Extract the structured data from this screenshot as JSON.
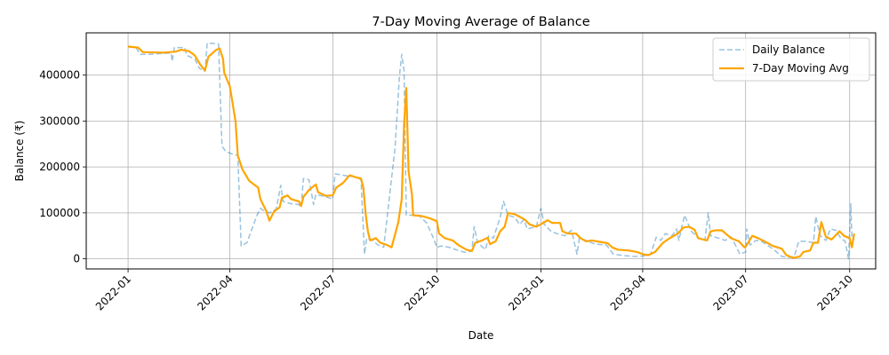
{
  "chart_data": {
    "type": "line",
    "title": "7-Day Moving Average of Balance",
    "xlabel": "Date",
    "ylabel": "Balance (₹)",
    "x_range": [
      "2021-11-25",
      "2023-10-24"
    ],
    "ylim": [
      -22000,
      492000
    ],
    "x_ticks": [
      {
        "date": "2022-01-01",
        "label": "2022-01"
      },
      {
        "date": "2022-04-01",
        "label": "2022-04"
      },
      {
        "date": "2022-07-01",
        "label": "2022-07"
      },
      {
        "date": "2022-10-01",
        "label": "2022-10"
      },
      {
        "date": "2023-01-01",
        "label": "2023-01"
      },
      {
        "date": "2023-04-01",
        "label": "2023-04"
      },
      {
        "date": "2023-07-01",
        "label": "2023-07"
      },
      {
        "date": "2023-10-01",
        "label": "2023-10"
      }
    ],
    "y_ticks": [
      0,
      100000,
      200000,
      300000,
      400000
    ],
    "y_tick_labels": [
      "0",
      "100000",
      "200000",
      "300000",
      "400000"
    ],
    "grid": true,
    "legend_position": "top-right",
    "series": [
      {
        "name": "Daily Balance",
        "color": "#1f77b4",
        "style": "dashed",
        "points": [
          [
            "2022-01-01",
            463000
          ],
          [
            "2022-01-08",
            460000
          ],
          [
            "2022-01-12",
            445000
          ],
          [
            "2022-01-20",
            445000
          ],
          [
            "2022-01-30",
            447000
          ],
          [
            "2022-02-08",
            448000
          ],
          [
            "2022-02-09",
            430000
          ],
          [
            "2022-02-11",
            460000
          ],
          [
            "2022-02-20",
            460000
          ],
          [
            "2022-02-22",
            443000
          ],
          [
            "2022-03-01",
            435000
          ],
          [
            "2022-03-05",
            415000
          ],
          [
            "2022-03-10",
            408000
          ],
          [
            "2022-03-12",
            470000
          ],
          [
            "2022-03-22",
            468000
          ],
          [
            "2022-03-25",
            245000
          ],
          [
            "2022-03-28",
            235000
          ],
          [
            "2022-04-01",
            230000
          ],
          [
            "2022-04-08",
            225000
          ],
          [
            "2022-04-11",
            28000
          ],
          [
            "2022-04-16",
            35000
          ],
          [
            "2022-04-25",
            95000
          ],
          [
            "2022-04-28",
            110000
          ],
          [
            "2022-05-01",
            105000
          ],
          [
            "2022-05-06",
            100000
          ],
          [
            "2022-05-12",
            108000
          ],
          [
            "2022-05-16",
            160000
          ],
          [
            "2022-05-18",
            125000
          ],
          [
            "2022-05-25",
            120000
          ],
          [
            "2022-06-01",
            118000
          ],
          [
            "2022-06-03",
            112000
          ],
          [
            "2022-06-05",
            175000
          ],
          [
            "2022-06-10",
            172000
          ],
          [
            "2022-06-14",
            118000
          ],
          [
            "2022-06-16",
            140000
          ],
          [
            "2022-06-25",
            135000
          ],
          [
            "2022-07-01",
            130000
          ],
          [
            "2022-07-03",
            185000
          ],
          [
            "2022-07-10",
            182000
          ],
          [
            "2022-07-15",
            180000
          ],
          [
            "2022-07-22",
            178000
          ],
          [
            "2022-07-26",
            172000
          ],
          [
            "2022-07-29",
            10000
          ],
          [
            "2022-07-31",
            45000
          ],
          [
            "2022-08-05",
            40000
          ],
          [
            "2022-08-10",
            30000
          ],
          [
            "2022-08-15",
            25000
          ],
          [
            "2022-08-25",
            240000
          ],
          [
            "2022-08-29",
            400000
          ],
          [
            "2022-08-31",
            445000
          ],
          [
            "2022-09-02",
            410000
          ],
          [
            "2022-09-04",
            95000
          ],
          [
            "2022-09-15",
            95000
          ],
          [
            "2022-09-22",
            78000
          ],
          [
            "2022-09-28",
            45000
          ],
          [
            "2022-10-01",
            25000
          ],
          [
            "2022-10-05",
            28000
          ],
          [
            "2022-10-12",
            25000
          ],
          [
            "2022-10-20",
            18000
          ],
          [
            "2022-10-26",
            14000
          ],
          [
            "2022-11-01",
            17000
          ],
          [
            "2022-11-03",
            70000
          ],
          [
            "2022-11-06",
            35000
          ],
          [
            "2022-11-13",
            20000
          ],
          [
            "2022-11-16",
            50000
          ],
          [
            "2022-11-20",
            45000
          ],
          [
            "2022-11-26",
            90000
          ],
          [
            "2022-11-29",
            125000
          ],
          [
            "2022-12-03",
            95000
          ],
          [
            "2022-12-09",
            90000
          ],
          [
            "2022-12-13",
            75000
          ],
          [
            "2022-12-17",
            85000
          ],
          [
            "2022-12-20",
            65000
          ],
          [
            "2022-12-28",
            70000
          ],
          [
            "2023-01-01",
            110000
          ],
          [
            "2023-01-04",
            75000
          ],
          [
            "2023-01-10",
            60000
          ],
          [
            "2023-01-15",
            55000
          ],
          [
            "2023-01-22",
            50000
          ],
          [
            "2023-01-28",
            62000
          ],
          [
            "2023-02-02",
            10000
          ],
          [
            "2023-02-04",
            45000
          ],
          [
            "2023-02-10",
            40000
          ],
          [
            "2023-02-18",
            32000
          ],
          [
            "2023-02-28",
            30000
          ],
          [
            "2023-03-06",
            10000
          ],
          [
            "2023-03-15",
            7000
          ],
          [
            "2023-03-25",
            5000
          ],
          [
            "2023-04-01",
            6000
          ],
          [
            "2023-04-08",
            10000
          ],
          [
            "2023-04-13",
            47000
          ],
          [
            "2023-04-17",
            40000
          ],
          [
            "2023-04-21",
            55000
          ],
          [
            "2023-04-27",
            50000
          ],
          [
            "2023-05-01",
            65000
          ],
          [
            "2023-05-03",
            40000
          ],
          [
            "2023-05-08",
            95000
          ],
          [
            "2023-05-14",
            60000
          ],
          [
            "2023-05-19",
            48000
          ],
          [
            "2023-05-23",
            42000
          ],
          [
            "2023-05-26",
            40000
          ],
          [
            "2023-05-29",
            100000
          ],
          [
            "2023-05-31",
            50000
          ],
          [
            "2023-06-07",
            45000
          ],
          [
            "2023-06-13",
            40000
          ],
          [
            "2023-06-18",
            48000
          ],
          [
            "2023-06-22",
            30000
          ],
          [
            "2023-06-26",
            10000
          ],
          [
            "2023-07-01",
            15000
          ],
          [
            "2023-07-02",
            65000
          ],
          [
            "2023-07-05",
            30000
          ],
          [
            "2023-07-10",
            40000
          ],
          [
            "2023-07-15",
            38000
          ],
          [
            "2023-07-20",
            30000
          ],
          [
            "2023-07-26",
            20000
          ],
          [
            "2023-08-02",
            5000
          ],
          [
            "2023-08-08",
            3000
          ],
          [
            "2023-08-13",
            5000
          ],
          [
            "2023-08-17",
            38000
          ],
          [
            "2023-08-24",
            38000
          ],
          [
            "2023-08-30",
            35000
          ],
          [
            "2023-09-01",
            92000
          ],
          [
            "2023-09-05",
            50000
          ],
          [
            "2023-09-10",
            40000
          ],
          [
            "2023-09-14",
            65000
          ],
          [
            "2023-09-19",
            62000
          ],
          [
            "2023-09-23",
            45000
          ],
          [
            "2023-09-27",
            38000
          ],
          [
            "2023-09-30",
            0
          ],
          [
            "2023-10-02",
            120000
          ],
          [
            "2023-10-03",
            45000
          ]
        ]
      },
      {
        "name": "7-Day Moving Avg",
        "color": "#ffa500",
        "style": "solid",
        "points": [
          [
            "2022-01-01",
            462000
          ],
          [
            "2022-01-10",
            460000
          ],
          [
            "2022-01-14",
            450000
          ],
          [
            "2022-02-01",
            449000
          ],
          [
            "2022-02-12",
            451000
          ],
          [
            "2022-02-17",
            455000
          ],
          [
            "2022-02-24",
            452000
          ],
          [
            "2022-03-01",
            443000
          ],
          [
            "2022-03-06",
            422000
          ],
          [
            "2022-03-10",
            410000
          ],
          [
            "2022-03-13",
            440000
          ],
          [
            "2022-03-20",
            455000
          ],
          [
            "2022-03-23",
            458000
          ],
          [
            "2022-03-26",
            435000
          ],
          [
            "2022-03-27",
            405000
          ],
          [
            "2022-04-01",
            375000
          ],
          [
            "2022-04-06",
            300000
          ],
          [
            "2022-04-08",
            225000
          ],
          [
            "2022-04-12",
            195000
          ],
          [
            "2022-04-18",
            170000
          ],
          [
            "2022-04-26",
            155000
          ],
          [
            "2022-04-28",
            130000
          ],
          [
            "2022-05-03",
            105000
          ],
          [
            "2022-05-06",
            83000
          ],
          [
            "2022-05-10",
            103000
          ],
          [
            "2022-05-15",
            112000
          ],
          [
            "2022-05-17",
            133000
          ],
          [
            "2022-05-22",
            138000
          ],
          [
            "2022-05-25",
            130000
          ],
          [
            "2022-06-01",
            125000
          ],
          [
            "2022-06-03",
            115000
          ],
          [
            "2022-06-05",
            135000
          ],
          [
            "2022-06-10",
            150000
          ],
          [
            "2022-06-16",
            162000
          ],
          [
            "2022-06-18",
            145000
          ],
          [
            "2022-06-25",
            137000
          ],
          [
            "2022-07-01",
            138000
          ],
          [
            "2022-07-04",
            155000
          ],
          [
            "2022-07-10",
            165000
          ],
          [
            "2022-07-16",
            182000
          ],
          [
            "2022-07-22",
            177000
          ],
          [
            "2022-07-26",
            175000
          ],
          [
            "2022-07-28",
            155000
          ],
          [
            "2022-07-30",
            100000
          ],
          [
            "2022-08-01",
            60000
          ],
          [
            "2022-08-03",
            40000
          ],
          [
            "2022-08-08",
            45000
          ],
          [
            "2022-08-12",
            35000
          ],
          [
            "2022-08-18",
            30000
          ],
          [
            "2022-08-22",
            25000
          ],
          [
            "2022-08-28",
            80000
          ],
          [
            "2022-08-31",
            130000
          ],
          [
            "2022-09-02",
            290000
          ],
          [
            "2022-09-04",
            372000
          ],
          [
            "2022-09-06",
            190000
          ],
          [
            "2022-09-09",
            140000
          ],
          [
            "2022-09-10",
            95000
          ],
          [
            "2022-09-18",
            93000
          ],
          [
            "2022-09-25",
            88000
          ],
          [
            "2022-10-01",
            82000
          ],
          [
            "2022-10-03",
            55000
          ],
          [
            "2022-10-08",
            45000
          ],
          [
            "2022-10-15",
            40000
          ],
          [
            "2022-10-20",
            30000
          ],
          [
            "2022-10-27",
            20000
          ],
          [
            "2022-11-01",
            17000
          ],
          [
            "2022-11-04",
            35000
          ],
          [
            "2022-11-10",
            40000
          ],
          [
            "2022-11-15",
            46000
          ],
          [
            "2022-11-17",
            32000
          ],
          [
            "2022-11-22",
            38000
          ],
          [
            "2022-11-26",
            60000
          ],
          [
            "2022-11-30",
            70000
          ],
          [
            "2022-12-03",
            100000
          ],
          [
            "2022-12-09",
            97000
          ],
          [
            "2022-12-18",
            85000
          ],
          [
            "2022-12-22",
            75000
          ],
          [
            "2022-12-28",
            70000
          ],
          [
            "2023-01-03",
            78000
          ],
          [
            "2023-01-07",
            84000
          ],
          [
            "2023-01-11",
            78000
          ],
          [
            "2023-01-18",
            78000
          ],
          [
            "2023-01-20",
            60000
          ],
          [
            "2023-01-25",
            55000
          ],
          [
            "2023-02-01",
            55000
          ],
          [
            "2023-02-05",
            45000
          ],
          [
            "2023-02-10",
            38000
          ],
          [
            "2023-02-15",
            40000
          ],
          [
            "2023-02-22",
            37000
          ],
          [
            "2023-03-01",
            34000
          ],
          [
            "2023-03-05",
            25000
          ],
          [
            "2023-03-10",
            20000
          ],
          [
            "2023-03-20",
            18000
          ],
          [
            "2023-03-27",
            15000
          ],
          [
            "2023-04-01",
            10000
          ],
          [
            "2023-04-06",
            8000
          ],
          [
            "2023-04-12",
            15000
          ],
          [
            "2023-04-19",
            35000
          ],
          [
            "2023-04-25",
            45000
          ],
          [
            "2023-05-02",
            55000
          ],
          [
            "2023-05-07",
            68000
          ],
          [
            "2023-05-12",
            70000
          ],
          [
            "2023-05-17",
            63000
          ],
          [
            "2023-05-20",
            45000
          ],
          [
            "2023-05-28",
            40000
          ],
          [
            "2023-05-31",
            60000
          ],
          [
            "2023-06-05",
            62000
          ],
          [
            "2023-06-10",
            62000
          ],
          [
            "2023-06-18",
            45000
          ],
          [
            "2023-06-25",
            38000
          ],
          [
            "2023-06-30",
            25000
          ],
          [
            "2023-07-02",
            30000
          ],
          [
            "2023-07-07",
            50000
          ],
          [
            "2023-07-12",
            45000
          ],
          [
            "2023-07-20",
            35000
          ],
          [
            "2023-07-25",
            28000
          ],
          [
            "2023-08-02",
            22000
          ],
          [
            "2023-08-06",
            8000
          ],
          [
            "2023-08-12",
            2000
          ],
          [
            "2023-08-18",
            5000
          ],
          [
            "2023-08-21",
            15000
          ],
          [
            "2023-08-27",
            18000
          ],
          [
            "2023-08-30",
            35000
          ],
          [
            "2023-09-03",
            35000
          ],
          [
            "2023-09-06",
            80000
          ],
          [
            "2023-09-10",
            48000
          ],
          [
            "2023-09-15",
            42000
          ],
          [
            "2023-09-22",
            60000
          ],
          [
            "2023-09-26",
            50000
          ],
          [
            "2023-10-01",
            45000
          ],
          [
            "2023-10-03",
            25000
          ],
          [
            "2023-10-05",
            55000
          ]
        ]
      }
    ]
  }
}
